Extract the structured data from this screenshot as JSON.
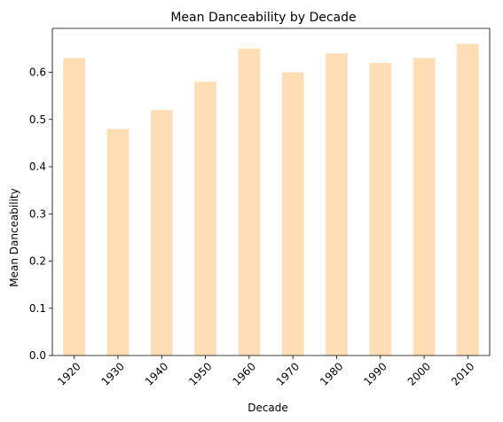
{
  "chart_data": {
    "type": "bar",
    "title": "Mean Danceability by Decade",
    "xlabel": "Decade",
    "ylabel": "Mean Danceability",
    "categories": [
      "1920",
      "1930",
      "1940",
      "1950",
      "1960",
      "1970",
      "1980",
      "1990",
      "2000",
      "2010"
    ],
    "values": [
      0.63,
      0.48,
      0.52,
      0.58,
      0.65,
      0.6,
      0.64,
      0.62,
      0.63,
      0.66
    ],
    "ylim": [
      0,
      0.693
    ],
    "yticks": [
      "0.0",
      "0.1",
      "0.2",
      "0.3",
      "0.4",
      "0.5",
      "0.6"
    ],
    "bar_color": "#ffdeb6",
    "grid": false,
    "legend": false
  }
}
